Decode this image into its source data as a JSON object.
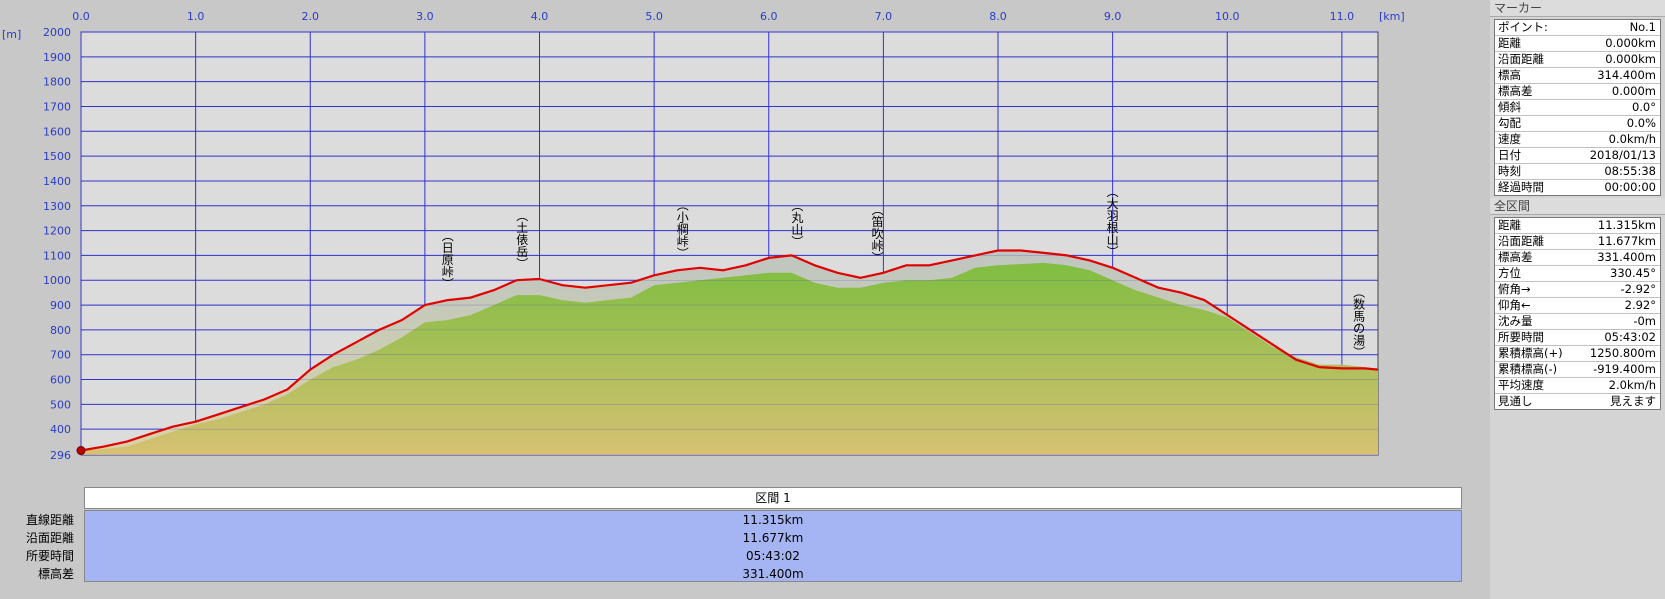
{
  "chart_data": {
    "type": "area",
    "units": {
      "x": "[km]",
      "y": "[m]"
    },
    "xlim": [
      0,
      11.315
    ],
    "ylim": [
      296,
      2000
    ],
    "x_ticks": [
      "0.0",
      "1.0",
      "2.0",
      "3.0",
      "4.0",
      "5.0",
      "6.0",
      "7.0",
      "8.0",
      "9.0",
      "10.0",
      "11.0"
    ],
    "y_ticks": [
      "296",
      "400",
      "500",
      "600",
      "700",
      "800",
      "900",
      "1000",
      "1100",
      "1200",
      "1300",
      "1400",
      "1500",
      "1600",
      "1700",
      "1800",
      "1900",
      "2000"
    ],
    "series": [
      {
        "color": "#e00000",
        "x": [
          0.0,
          0.2,
          0.4,
          0.6,
          0.8,
          1.0,
          1.2,
          1.4,
          1.6,
          1.8,
          2.0,
          2.2,
          2.4,
          2.6,
          2.8,
          3.0,
          3.2,
          3.4,
          3.6,
          3.8,
          4.0,
          4.2,
          4.4,
          4.6,
          4.8,
          5.0,
          5.2,
          5.4,
          5.6,
          5.8,
          6.0,
          6.2,
          6.4,
          6.6,
          6.8,
          7.0,
          7.2,
          7.4,
          7.6,
          7.8,
          8.0,
          8.2,
          8.4,
          8.6,
          8.8,
          9.0,
          9.2,
          9.4,
          9.6,
          9.8,
          10.0,
          10.2,
          10.4,
          10.6,
          10.8,
          11.0,
          11.2,
          11.315
        ],
        "y": [
          314,
          330,
          350,
          380,
          410,
          430,
          460,
          490,
          520,
          560,
          640,
          700,
          750,
          800,
          840,
          900,
          920,
          930,
          960,
          1000,
          1005,
          980,
          970,
          980,
          990,
          1020,
          1040,
          1050,
          1040,
          1060,
          1090,
          1100,
          1060,
          1030,
          1010,
          1030,
          1060,
          1060,
          1080,
          1100,
          1120,
          1120,
          1110,
          1100,
          1080,
          1050,
          1010,
          970,
          950,
          920,
          860,
          800,
          740,
          680,
          650,
          645,
          645,
          640
        ]
      }
    ],
    "terrain": {
      "colors": [
        "#7cbd3a",
        "#d6c070"
      ],
      "x": [
        0.0,
        0.2,
        0.4,
        0.6,
        0.8,
        1.0,
        1.2,
        1.4,
        1.6,
        1.8,
        2.0,
        2.2,
        2.4,
        2.6,
        2.8,
        3.0,
        3.2,
        3.4,
        3.6,
        3.8,
        4.0,
        4.2,
        4.4,
        4.6,
        4.8,
        5.0,
        5.2,
        5.4,
        5.6,
        5.8,
        6.0,
        6.2,
        6.4,
        6.6,
        6.8,
        7.0,
        7.2,
        7.4,
        7.6,
        7.8,
        8.0,
        8.2,
        8.4,
        8.6,
        8.8,
        9.0,
        9.2,
        9.4,
        9.6,
        9.8,
        10.0,
        10.2,
        10.4,
        10.6,
        10.8,
        11.0,
        11.2,
        11.315
      ],
      "y": [
        314,
        320,
        330,
        360,
        390,
        420,
        440,
        470,
        500,
        540,
        600,
        650,
        680,
        720,
        770,
        830,
        840,
        860,
        900,
        940,
        940,
        920,
        910,
        920,
        930,
        980,
        990,
        1000,
        1010,
        1020,
        1030,
        1030,
        990,
        970,
        970,
        990,
        1000,
        1000,
        1010,
        1050,
        1060,
        1065,
        1070,
        1060,
        1040,
        1000,
        960,
        930,
        900,
        880,
        850,
        790,
        730,
        690,
        660,
        660,
        650,
        640
      ]
    },
    "annotations": [
      {
        "label": "(日原峠)",
        "x": 3.2
      },
      {
        "label": "(土俵岳)",
        "x": 3.85
      },
      {
        "label": "(小棡峠)",
        "x": 5.25
      },
      {
        "label": "(丸山)",
        "x": 6.25
      },
      {
        "label": "(笛吹峠)",
        "x": 6.95
      },
      {
        "label": "(大羽根山)",
        "x": 9.0
      },
      {
        "label": "(数馬の湯)",
        "x": 11.15
      }
    ]
  },
  "segment": {
    "header": "区間 1",
    "rows": [
      {
        "label": "直線距離",
        "value": "11.315km"
      },
      {
        "label": "沿面距離",
        "value": "11.677km"
      },
      {
        "label": "所要時間",
        "value": "05:43:02"
      },
      {
        "label": "標高差",
        "value": "331.400m"
      }
    ]
  },
  "marker_panel": {
    "title": "マーカー",
    "rows": [
      {
        "label": "ポイント:",
        "value": "No.1"
      },
      {
        "label": "距離",
        "value": "0.000km"
      },
      {
        "label": "沿面距離",
        "value": "0.000km"
      },
      {
        "label": "標高",
        "value": "314.400m"
      },
      {
        "label": "標高差",
        "value": "0.000m"
      },
      {
        "label": "傾斜",
        "value": "0.0°"
      },
      {
        "label": "勾配",
        "value": "0.0%"
      },
      {
        "label": "速度",
        "value": "0.0km/h"
      },
      {
        "label": "日付",
        "value": "2018/01/13"
      },
      {
        "label": "時刻",
        "value": "08:55:38"
      },
      {
        "label": "経過時間",
        "value": "00:00:00"
      }
    ]
  },
  "total_panel": {
    "title": "全区間",
    "rows": [
      {
        "label": "距離",
        "value": "11.315km"
      },
      {
        "label": "沿面距離",
        "value": "11.677km"
      },
      {
        "label": "標高差",
        "value": "331.400m"
      },
      {
        "label": "方位",
        "value": "330.45°"
      },
      {
        "label": "俯角→",
        "value": "-2.92°"
      },
      {
        "label": "仰角←",
        "value": "2.92°"
      },
      {
        "label": "沈み量",
        "value": "-0m"
      },
      {
        "label": "所要時間",
        "value": "05:43:02"
      },
      {
        "label": "累積標高(+)",
        "value": "1250.800m"
      },
      {
        "label": "累積標高(-)",
        "value": "-919.400m"
      },
      {
        "label": "平均速度",
        "value": "2.0km/h"
      },
      {
        "label": "見通し",
        "value": "見えます"
      }
    ]
  }
}
